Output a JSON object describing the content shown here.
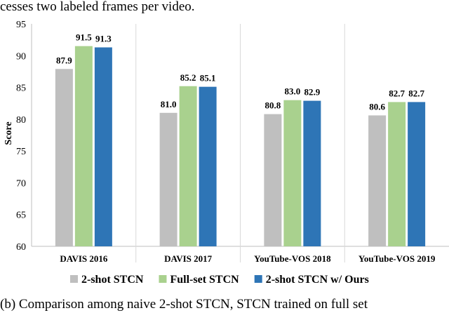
{
  "captions": {
    "top": "cesses two labeled frames per video.",
    "bottom": "(b) Comparison among naive 2-shot STCN, STCN trained on full set"
  },
  "chart_data": {
    "type": "bar",
    "categories": [
      "DAVIS 2016",
      "DAVIS 2017",
      "YouTube-VOS 2018",
      "YouTube-VOS 2019"
    ],
    "series": [
      {
        "name": "2-shot STCN",
        "values": [
          87.9,
          81.0,
          80.8,
          80.6
        ],
        "labels": [
          "87.9",
          "81.0",
          "80.8",
          "80.6"
        ],
        "color": "#bfbfbf"
      },
      {
        "name": "Full-set STCN",
        "values": [
          91.5,
          85.2,
          83.0,
          82.7
        ],
        "labels": [
          "91.5",
          "85.2",
          "83.0",
          "82.7"
        ],
        "color": "#a9d18e"
      },
      {
        "name": "2-shot STCN w/ Ours",
        "values": [
          91.3,
          85.1,
          82.9,
          82.7
        ],
        "labels": [
          "91.3",
          "85.1",
          "82.9",
          "82.7"
        ],
        "color": "#2e75b6"
      }
    ],
    "ylabel": "Score",
    "xlabel": "",
    "ylim": [
      60,
      95
    ],
    "yticks": [
      60,
      65,
      70,
      75,
      80,
      85,
      90,
      95
    ],
    "grid": "none",
    "category_separators": true,
    "legend": "bottom"
  }
}
